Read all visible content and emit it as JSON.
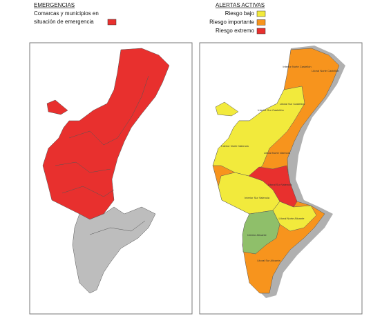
{
  "emergencias": {
    "title": "EMERGENCIAS",
    "lines": [
      "Comarcas y municipios en",
      "situación de emergencia"
    ],
    "color": "#e8302e"
  },
  "alertas": {
    "title": "ALERTAS ACTIVAS",
    "items": [
      {
        "label": "Riesgo bajo",
        "color": "#f2ea3c"
      },
      {
        "label": "Riesgo importante",
        "color": "#f7941d"
      },
      {
        "label": "Riesgo extremo",
        "color": "#e8302e"
      }
    ]
  },
  "regions": [
    "Interior Norte Castellón",
    "Litoral Norte Castellón",
    "Interior Sur Castellón",
    "Litoral Sur Castellón",
    "Interior Norte Valencia",
    "Litoral Norte Valencia",
    "Litoral Sur Valencia",
    "Interior Sur Valencia",
    "Litoral Norte Alicante",
    "Interior Alicante",
    "Litoral Sur Alicante"
  ]
}
